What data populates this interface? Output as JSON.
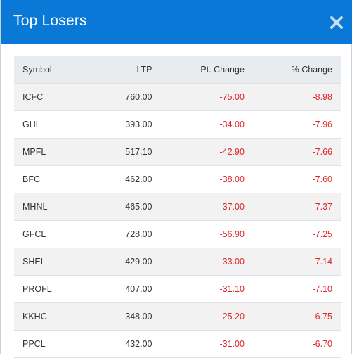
{
  "modal": {
    "title": "Top Losers",
    "close_icon": "close-icon"
  },
  "table": {
    "headers": {
      "symbol": "Symbol",
      "ltp": "LTP",
      "pt_change": "Pt. Change",
      "pct_change": "% Change"
    },
    "rows": [
      {
        "symbol": "ICFC",
        "ltp": "760.00",
        "pt_change": "-75.00",
        "pct_change": "-8.98"
      },
      {
        "symbol": "GHL",
        "ltp": "393.00",
        "pt_change": "-34.00",
        "pct_change": "-7.96"
      },
      {
        "symbol": "MPFL",
        "ltp": "517.10",
        "pt_change": "-42.90",
        "pct_change": "-7.66"
      },
      {
        "symbol": "BFC",
        "ltp": "462.00",
        "pt_change": "-38.00",
        "pct_change": "-7.60"
      },
      {
        "symbol": "MHNL",
        "ltp": "465.00",
        "pt_change": "-37.00",
        "pct_change": "-7.37"
      },
      {
        "symbol": "GFCL",
        "ltp": "728.00",
        "pt_change": "-56.90",
        "pct_change": "-7.25"
      },
      {
        "symbol": "SHEL",
        "ltp": "429.00",
        "pt_change": "-33.00",
        "pct_change": "-7.14"
      },
      {
        "symbol": "PROFL",
        "ltp": "407.00",
        "pt_change": "-31.10",
        "pct_change": "-7.10"
      },
      {
        "symbol": "KKHC",
        "ltp": "348.00",
        "pt_change": "-25.20",
        "pct_change": "-6.75"
      },
      {
        "symbol": "PPCL",
        "ltp": "432.00",
        "pt_change": "-31.00",
        "pct_change": "-6.70"
      }
    ]
  },
  "colors": {
    "header_bg": "#0a78d6",
    "negative": "#e0262a",
    "table_head_bg": "#e9ecef",
    "row_alt_bg": "#f2f2f2"
  }
}
